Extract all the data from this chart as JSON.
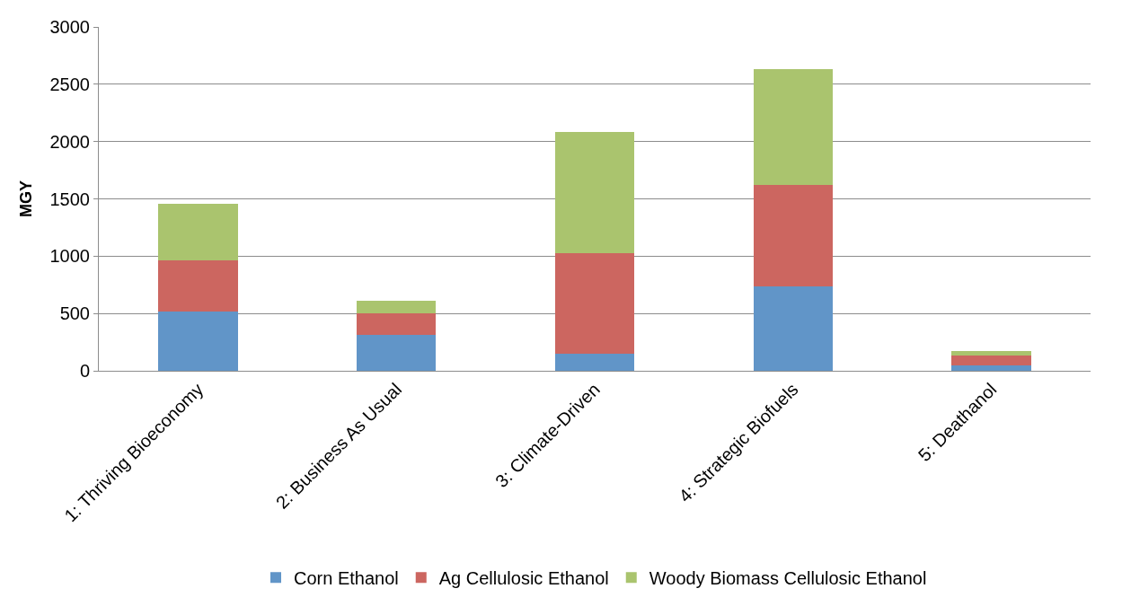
{
  "chart_data": {
    "type": "bar",
    "stacked": true,
    "ylabel": "MGY",
    "categories": [
      "1: Thriving Bioeconomy",
      "2: Business As Usual",
      "3: Climate-Driven",
      "4: Strategic Biofuels",
      "5: Deathanol"
    ],
    "series": [
      {
        "name": "Corn Ethanol",
        "color": "#6195c8",
        "values": [
          520,
          310,
          150,
          740,
          45
        ]
      },
      {
        "name": "Ag Cellulosic Ethanol",
        "color": "#cc6660",
        "values": [
          440,
          190,
          880,
          880,
          85
        ]
      },
      {
        "name": "Woody Biomass Cellulosic Ethanol",
        "color": "#aac46e",
        "values": [
          500,
          110,
          1050,
          1010,
          45
        ]
      }
    ],
    "ylim": [
      0,
      3000
    ],
    "yticks": [
      0,
      500,
      1000,
      1500,
      2000,
      2500,
      3000
    ],
    "grid": "y",
    "legend": "bottom"
  }
}
